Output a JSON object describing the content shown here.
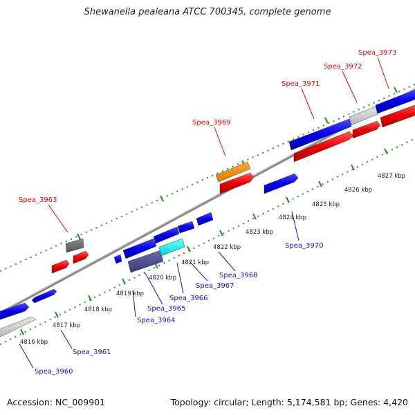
{
  "title": "Shewanella pealeana ATCC 700345, complete genome",
  "footer": {
    "accession": "Accession: NC_009901",
    "summary": "Topology: circular; Length: 5,174,581 bp; Genes: 4,420"
  },
  "colors": {
    "forward_label": "#e00000",
    "reverse_label": "#1010c0",
    "backbone": "#808080",
    "tick": "#2a8a2a"
  },
  "scale_labels": [
    "4816 kbp",
    "4817 kbp",
    "4818 kbp",
    "4819 kbp",
    "4820 kbp",
    "4821 kbp",
    "4822 kbp",
    "4823 kbp",
    "4824 kbp",
    "4825 kbp",
    "4826 kbp",
    "4827 kbp"
  ],
  "forward_genes": [
    "Spea_3963",
    "Spea_3969",
    "Spea_3971",
    "Spea_3972",
    "Spea_3973"
  ],
  "reverse_genes": [
    "Spea_3960",
    "Spea_3961",
    "Spea_3964",
    "Spea_3965",
    "Spea_3966",
    "Spea_3967",
    "Spea_3968",
    "Spea_3970"
  ]
}
